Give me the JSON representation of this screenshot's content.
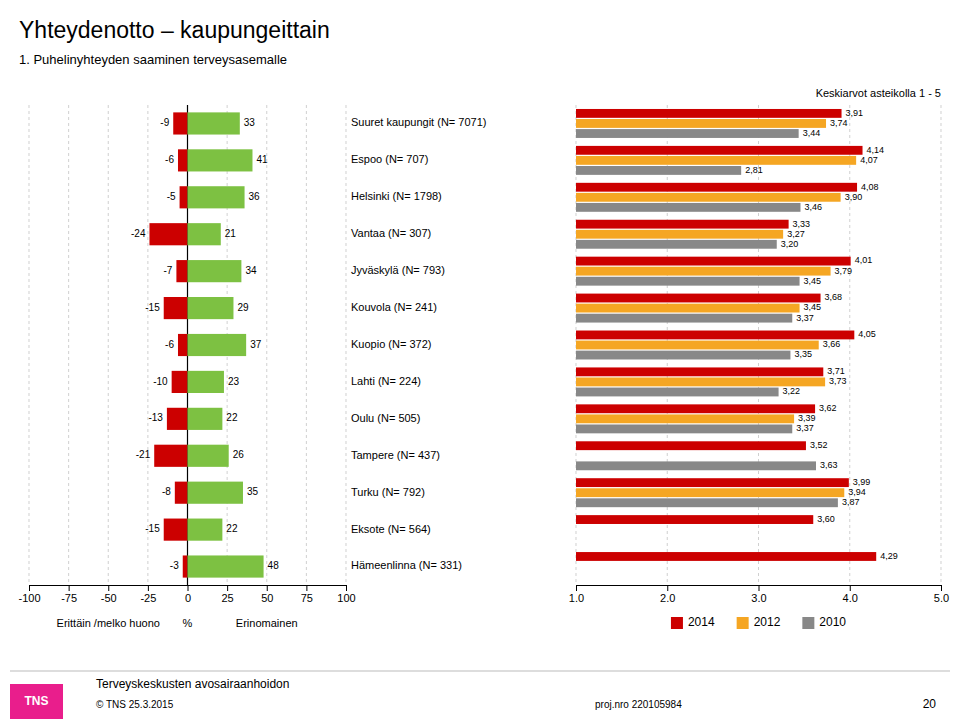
{
  "chart_data": [
    {
      "type": "bar",
      "orientation": "horizontal",
      "title": "Yhteydenotto – kaupungeittain",
      "subtitle": "1. Puhelinyhteyden saaminen terveysasemalle",
      "xlabel": "%",
      "categories": [
        "Suuret kaupungit (N= 7071)",
        "Espoo (N= 707)",
        "Helsinki (N= 1798)",
        "Vantaa (N= 307)",
        "Jyväskylä (N= 793)",
        "Kouvola (N= 241)",
        "Kuopio (N= 372)",
        "Lahti (N= 224)",
        "Oulu (N= 505)",
        "Tampere (N= 437)",
        "Turku (N= 792)",
        "Eksote (N= 564)",
        "Hämeenlinna (N= 331)"
      ],
      "series": [
        {
          "name": "Erittäin /melko huono",
          "color": "#cc0000",
          "values": [
            -9,
            -6,
            -5,
            -24,
            -7,
            -15,
            -6,
            -10,
            -13,
            -21,
            -8,
            -15,
            -3
          ]
        },
        {
          "name": "Erinomainen",
          "color": "#7dc142",
          "values": [
            33,
            41,
            36,
            21,
            34,
            29,
            37,
            23,
            22,
            26,
            35,
            22,
            48
          ]
        }
      ],
      "xlim": [
        -100,
        100
      ],
      "xticks": [
        -100,
        -75,
        -50,
        -25,
        0,
        25,
        50,
        75,
        100
      ],
      "grid": true,
      "data_labels": true,
      "annotations": [
        "TNS",
        "Terveyskeskusten avosairaanhoidon",
        "© TNS 25.3.2015",
        "proj.nro 220105984",
        "20"
      ]
    },
    {
      "type": "bar",
      "orientation": "horizontal",
      "title": "Keskiarvot asteikolla 1 - 5",
      "categories": [
        "Suuret kaupungit (N= 7071)",
        "Espoo (N= 707)",
        "Helsinki (N= 1798)",
        "Vantaa (N= 307)",
        "Jyväskylä (N= 793)",
        "Kouvola (N= 241)",
        "Kuopio (N= 372)",
        "Lahti (N= 224)",
        "Oulu (N= 505)",
        "Tampere (N= 437)",
        "Turku (N= 792)",
        "Eksote (N= 564)",
        "Hämeenlinna (N= 331)"
      ],
      "series": [
        {
          "name": "2014",
          "color": "#cc0000",
          "values": [
            3.91,
            4.14,
            4.08,
            3.33,
            4.01,
            3.68,
            4.05,
            3.71,
            3.62,
            3.52,
            3.99,
            3.6,
            4.29
          ],
          "value_labels": [
            "3,91",
            "4,14",
            "4,08",
            "3,33",
            "4,01",
            "3,68",
            "4,05",
            "3,71",
            "3,62",
            "3,52",
            "3,99",
            "3,60",
            "4,29"
          ]
        },
        {
          "name": "2012",
          "color": "#f5a623",
          "values": [
            3.74,
            4.07,
            3.9,
            3.27,
            3.79,
            3.45,
            3.66,
            3.73,
            3.39,
            null,
            3.94,
            null,
            null
          ],
          "value_labels": [
            "3,74",
            "4,07",
            "3,90",
            "3,27",
            "3,79",
            "3,45",
            "3,66",
            "3,73",
            "3,39",
            null,
            "3,94",
            null,
            null
          ]
        },
        {
          "name": "2010",
          "color": "#888888",
          "values": [
            3.44,
            2.81,
            3.46,
            3.2,
            3.45,
            3.37,
            3.35,
            3.22,
            3.37,
            3.63,
            3.87,
            null,
            null
          ],
          "value_labels": [
            "3,44",
            "2,81",
            "3,46",
            "3,20",
            "3,45",
            "3,37",
            "3,35",
            "3,22",
            "3,37",
            "3,63",
            "3,87",
            null,
            null
          ]
        }
      ],
      "xlim": [
        1.0,
        5.0
      ],
      "xticks": [
        {
          "value": 1.0,
          "label": "1.0"
        },
        {
          "value": 2.0,
          "label": "2.0"
        },
        {
          "value": 3.0,
          "label": "3.0"
        },
        {
          "value": 4.0,
          "label": "4.0"
        },
        {
          "value": 5.0,
          "label": "5.0"
        }
      ],
      "grid": true,
      "legend": "bottom",
      "data_labels": true
    }
  ]
}
